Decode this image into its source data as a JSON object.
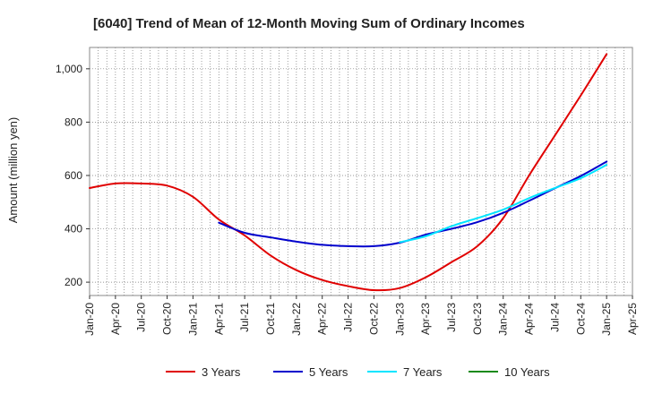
{
  "chart_data": {
    "type": "line",
    "title": "[6040]  Trend of Mean of 12-Month Moving Sum of Ordinary Incomes",
    "ylabel": "Amount (million yen)",
    "xlabel": "",
    "ylim": [
      150,
      1080
    ],
    "yticks": [
      200,
      400,
      600,
      800,
      1000
    ],
    "ytick_labels": [
      "200",
      "400",
      "600",
      "800",
      "1,000"
    ],
    "categories": [
      "Jan-20",
      "Apr-20",
      "Jul-20",
      "Oct-20",
      "Jan-21",
      "Apr-21",
      "Jul-21",
      "Oct-21",
      "Jan-22",
      "Apr-22",
      "Jul-22",
      "Oct-22",
      "Jan-23",
      "Apr-23",
      "Jul-23",
      "Oct-23",
      "Jan-24",
      "Apr-24",
      "Jul-24",
      "Oct-24",
      "Jan-25",
      "Apr-25"
    ],
    "series": [
      {
        "name": "3 Years",
        "color": "#e00000",
        "values": [
          553,
          570,
          570,
          562,
          520,
          435,
          375,
          300,
          245,
          208,
          185,
          170,
          178,
          218,
          275,
          335,
          440,
          600,
          750,
          900,
          1055,
          null
        ]
      },
      {
        "name": "5 Years",
        "color": "#0000cc",
        "values": [
          null,
          null,
          null,
          null,
          null,
          423,
          385,
          368,
          352,
          340,
          335,
          335,
          348,
          378,
          400,
          425,
          460,
          505,
          552,
          598,
          652,
          null
        ]
      },
      {
        "name": "7 Years",
        "color": "#00e5ff",
        "values": [
          null,
          null,
          null,
          null,
          null,
          null,
          null,
          null,
          null,
          null,
          null,
          null,
          350,
          372,
          410,
          440,
          472,
          515,
          553,
          590,
          640,
          null
        ]
      },
      {
        "name": "10 Years",
        "color": "#1a8a1a",
        "values": [
          null,
          null,
          null,
          null,
          null,
          null,
          null,
          null,
          null,
          null,
          null,
          null,
          null,
          null,
          null,
          null,
          null,
          null,
          null,
          null,
          null,
          null
        ]
      }
    ],
    "grid": true,
    "legend_position": "bottom"
  }
}
